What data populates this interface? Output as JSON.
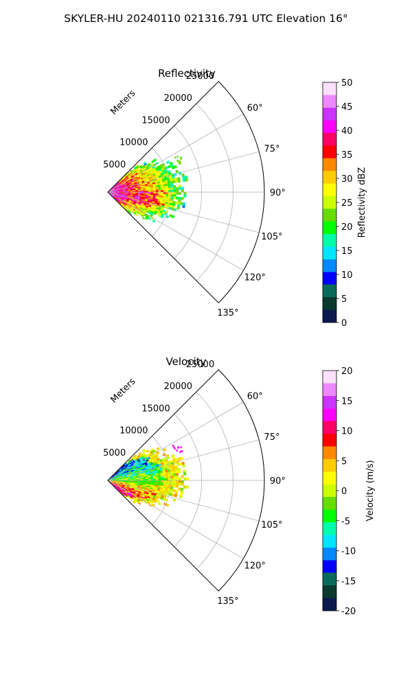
{
  "page_title": "SKYLER-HU  20240110  021316.791 UTC Elevation 16°",
  "chart_data": [
    {
      "type": "polar-sector",
      "title": "Reflectivity",
      "range_axis_label": "Meters",
      "range_ticks": [
        5000,
        10000,
        15000,
        20000,
        25000
      ],
      "range_max": 25000,
      "azimuth_range_deg": [
        45,
        135
      ],
      "azimuth_ticks": [
        "60°",
        "75°",
        "90°",
        "105°",
        "120°",
        "135°"
      ],
      "grid": true,
      "colorbar": {
        "label": "Reflectivity dBZ",
        "min": 0,
        "max": 50,
        "ticks": [
          0,
          5,
          10,
          15,
          20,
          25,
          30,
          35,
          40,
          45,
          50
        ],
        "stops": [
          "#0b1a4e",
          "#0a3a2e",
          "#0b6b5a",
          "#0000ff",
          "#0088ff",
          "#00e5ff",
          "#00ffaa",
          "#00ff00",
          "#66dd00",
          "#ccff00",
          "#ffff00",
          "#ffcc00",
          "#ff8800",
          "#ff0000",
          "#ff0066",
          "#ff00ff",
          "#cc33ff",
          "#ee88ff",
          "#ffe0ff"
        ]
      }
    },
    {
      "type": "polar-sector",
      "title": "Velocity",
      "range_axis_label": "Meters",
      "range_ticks": [
        5000,
        10000,
        15000,
        20000,
        25000
      ],
      "range_max": 25000,
      "azimuth_range_deg": [
        45,
        135
      ],
      "azimuth_ticks": [
        "60°",
        "75°",
        "90°",
        "105°",
        "120°",
        "135°"
      ],
      "grid": true,
      "colorbar": {
        "label": "Velocity (m/s)",
        "min": -20,
        "max": 20,
        "ticks": [
          -20,
          -15,
          -10,
          -5,
          0,
          5,
          10,
          15,
          20
        ],
        "stops": [
          "#0b1a4e",
          "#0a3a2e",
          "#0b6b5a",
          "#0000ff",
          "#0088ff",
          "#00e5ff",
          "#00ffaa",
          "#00ff00",
          "#66dd00",
          "#ccff00",
          "#ffff00",
          "#ffcc00",
          "#ff8800",
          "#ff0000",
          "#ff0066",
          "#ff00ff",
          "#cc33ff",
          "#ee88ff",
          "#ffe0ff"
        ]
      }
    }
  ]
}
